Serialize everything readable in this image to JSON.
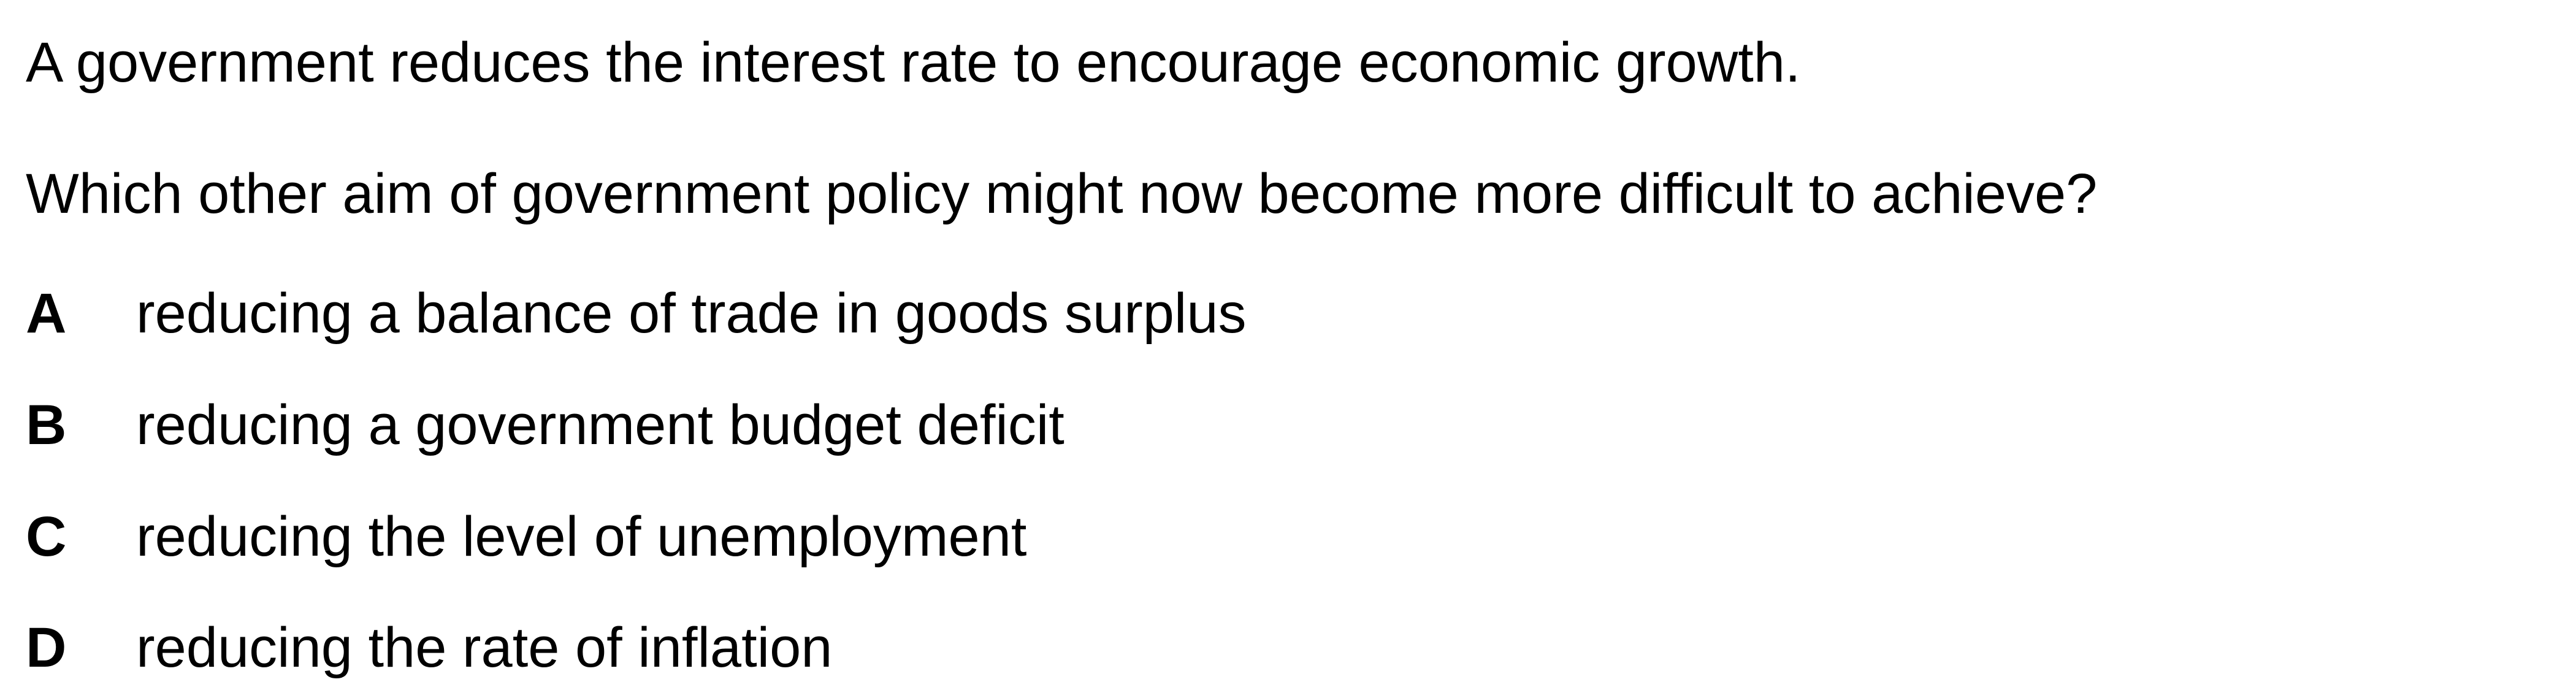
{
  "question": {
    "stem": "A government reduces the interest rate to encourage economic growth.",
    "prompt": "Which other aim of government policy might now become more difficult to achieve?",
    "options": [
      {
        "letter": "A",
        "text": "reducing a balance of trade in goods surplus"
      },
      {
        "letter": "B",
        "text": "reducing a government budget deficit"
      },
      {
        "letter": "C",
        "text": "reducing the level of unemployment"
      },
      {
        "letter": "D",
        "text": "reducing the rate of inflation"
      }
    ]
  }
}
